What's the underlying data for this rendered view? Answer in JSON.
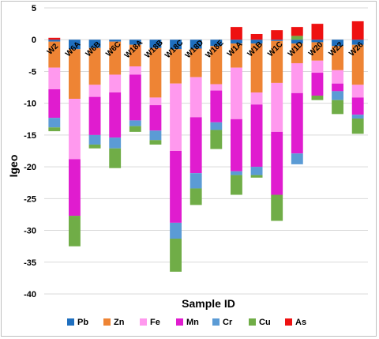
{
  "chart_data": {
    "type": "bar",
    "subtype": "stacked",
    "title": "",
    "xlabel": "Sample ID",
    "ylabel": "Igeo",
    "ylim": [
      -40,
      5
    ],
    "yticks": [
      5,
      0,
      -5,
      -10,
      -15,
      -20,
      -25,
      -30,
      -35,
      -40
    ],
    "grid": "horizontal",
    "legend_position": "bottom",
    "categories": [
      "W2",
      "W6A",
      "W6B",
      "W6C",
      "W18A",
      "W18B",
      "W18C",
      "W18D",
      "W18E",
      "W1A",
      "W1B",
      "W1C",
      "W1D",
      "W20",
      "W22",
      "W26"
    ],
    "series": [
      {
        "name": "Pb",
        "color": "#1f6fbf",
        "values": [
          -0.3,
          -1.5,
          -1.3,
          -0.3,
          -0.8,
          -1.3,
          -1.5,
          -1.4,
          -1.0,
          -0.6,
          -0.6,
          -0.2,
          -0.6,
          -0.4,
          -1.0,
          -0.8
        ]
      },
      {
        "name": "Zn",
        "color": "#ee8434",
        "values": [
          -4.1,
          -7.8,
          -5.8,
          -5.2,
          -3.4,
          -7.8,
          -5.4,
          -4.5,
          -6.0,
          -3.8,
          -7.7,
          -6.6,
          -3.1,
          -2.9,
          -3.8,
          -6.3
        ]
      },
      {
        "name": "Fe",
        "color": "#ff99ee",
        "values": [
          -3.4,
          -9.5,
          -1.9,
          -2.8,
          -1.3,
          -1.2,
          -10.6,
          -6.3,
          -1.0,
          -8.1,
          -1.9,
          -7.7,
          -4.7,
          -1.9,
          -2.1,
          -2.0
        ]
      },
      {
        "name": "Mn",
        "color": "#e01ccf",
        "values": [
          -4.5,
          -8.9,
          -6.0,
          -7.1,
          -7.2,
          -4.0,
          -11.3,
          -8.8,
          -5.0,
          -8.2,
          -9.8,
          -9.9,
          -9.5,
          -3.6,
          -1.2,
          -2.7
        ]
      },
      {
        "name": "Cr",
        "color": "#5b9bd5",
        "values": [
          -1.5,
          0,
          -1.5,
          -1.7,
          -0.9,
          -1.5,
          -2.5,
          -2.4,
          -1.2,
          -0.6,
          -1.3,
          0,
          -1.7,
          0,
          -1.4,
          -0.6
        ]
      },
      {
        "name": "Cu",
        "color": "#70ad47",
        "values": [
          -0.6,
          -4.8,
          -0.6,
          -3.1,
          -0.9,
          -0.7,
          -5.2,
          -2.6,
          -3.0,
          -3.1,
          -0.4,
          -4.1,
          0.6,
          -0.7,
          -2.2,
          -2.4
        ]
      },
      {
        "name": "As",
        "color": "#ee1111",
        "values": [
          0.3,
          0,
          0,
          0,
          0,
          0,
          0,
          0,
          0,
          2.0,
          0.9,
          1.5,
          1.4,
          2.5,
          0,
          2.9
        ]
      }
    ]
  }
}
